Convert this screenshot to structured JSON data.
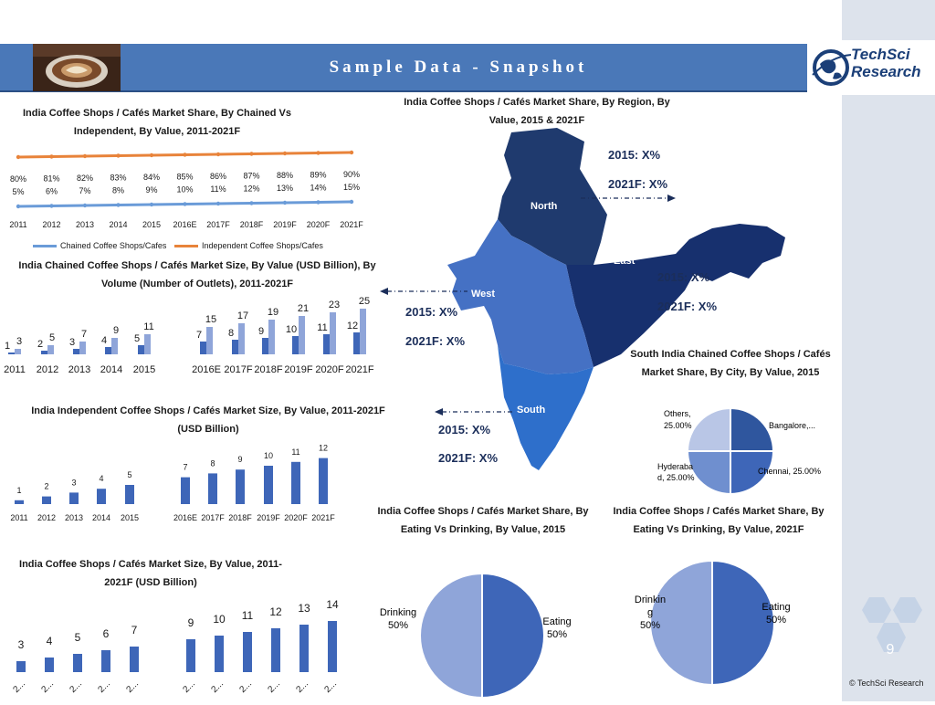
{
  "banner": {
    "title": "Sample Data - Snapshot"
  },
  "logo": {
    "line1": "TechSci",
    "line2": "Research"
  },
  "footer": "© TechSci Research",
  "page_number": "9",
  "colors": {
    "banner": "#4a78b8",
    "orange": "#e8833a",
    "lightblue": "#6a9bd8",
    "bar": "#3e66b8",
    "barlight": "#8fa5d9",
    "north": "#1f3a6e",
    "east": "#17306e",
    "west": "#4571c4",
    "south": "#2e6fcb"
  },
  "icons": [
    "coffee-cup-photo",
    "globe-logo-icon",
    "hexagon-icon",
    "dashed-arrow-icon"
  ],
  "chart_data": [
    {
      "type": "line",
      "title": "India Coffee Shops / Cafés Market Share, By Chained Vs Independent, By Value, 2011-2021F",
      "categories": [
        "2011",
        "2012",
        "2013",
        "2014",
        "2015",
        "2016E",
        "2017F",
        "2018F",
        "2019F",
        "2020F",
        "2021F"
      ],
      "series": [
        {
          "name": "Chained Coffee Shops/Cafes",
          "labels": [
            "5%",
            "6%",
            "7%",
            "8%",
            "9%",
            "10%",
            "11%",
            "12%",
            "13%",
            "14%",
            "15%"
          ],
          "values": [
            5,
            6,
            7,
            8,
            9,
            10,
            11,
            12,
            13,
            14,
            15
          ]
        },
        {
          "name": "Independent Coffee Shops/Cafes",
          "labels": [
            "80%",
            "81%",
            "82%",
            "83%",
            "84%",
            "85%",
            "86%",
            "87%",
            "88%",
            "89%",
            "90%"
          ],
          "values": [
            80,
            81,
            82,
            83,
            84,
            85,
            86,
            87,
            88,
            89,
            90
          ]
        }
      ]
    },
    {
      "type": "bar",
      "title": "India Chained Coffee Shops / Cafés Market Size, By Value (USD Billion), By Volume (Number of Outlets), 2011-2021F",
      "categories": [
        "2011",
        "2012",
        "2013",
        "2014",
        "2015",
        "2016E",
        "2017F",
        "2018F",
        "2019F",
        "2020F",
        "2021F"
      ],
      "series": [
        {
          "values": [
            1,
            2,
            3,
            4,
            5,
            7,
            8,
            9,
            10,
            11,
            12
          ]
        },
        {
          "values": [
            3,
            5,
            7,
            9,
            11,
            15,
            17,
            19,
            21,
            23,
            25
          ]
        }
      ]
    },
    {
      "type": "bar",
      "title": "India Independent Coffee Shops / Cafés Market Size, By Value, 2011-2021F (USD Billion)",
      "categories": [
        "2011",
        "2012",
        "2013",
        "2014",
        "2015",
        "2016E",
        "2017F",
        "2018F",
        "2019F",
        "2020F",
        "2021F"
      ],
      "values": [
        1,
        2,
        3,
        4,
        5,
        7,
        8,
        9,
        10,
        11,
        12
      ]
    },
    {
      "type": "bar",
      "title": "India Coffee Shops / Cafés Market Size, By Value, 2011-2021F (USD Billion)",
      "categories": [
        "2...",
        "2...",
        "2...",
        "2...",
        "2...",
        "2...",
        "2...",
        "2...",
        "2...",
        "2...",
        "2..."
      ],
      "values": [
        3,
        4,
        5,
        6,
        7,
        9,
        10,
        11,
        12,
        13,
        14
      ]
    },
    {
      "type": "pie",
      "title": "India Coffee Shops / Cafés Market Share, By Eating Vs Drinking, By Value, 2015",
      "slices": [
        {
          "label": "Eating",
          "value": 50,
          "text": "50%"
        },
        {
          "label": "Drinking",
          "value": 50,
          "text": "50%"
        }
      ]
    },
    {
      "type": "pie",
      "title": "India Coffee Shops / Cafés Market Share, By Eating Vs Drinking, By Value, 2021F",
      "slices": [
        {
          "label": "Eating",
          "value": 50,
          "text": "50%"
        },
        {
          "label": "Drinking",
          "value": 50,
          "text": "50%"
        }
      ],
      "drink_lines": [
        "Drinkin",
        "g",
        "50%"
      ]
    },
    {
      "type": "pie",
      "title": "South India Chained Coffee Shops / Cafés Market Share, By City, By Value, 2015",
      "slices": [
        {
          "label": "Bangalore,...",
          "value": 25
        },
        {
          "label": "Chennai, 25.00%",
          "value": 25
        },
        {
          "label": "Hyderabad, 25.00%",
          "value": 25,
          "lines": [
            "Hyderaba",
            "d, 25.00%"
          ]
        },
        {
          "label": "Others, 25.00%",
          "value": 25,
          "lines": [
            "Others,",
            "25.00%"
          ]
        }
      ]
    }
  ],
  "map": {
    "title": "India Coffee Shops / Cafés Market Share, By Region, By Value, 2015 & 2021F",
    "regions": [
      {
        "name": "North",
        "y2015": "2015: X%",
        "y2021": "2021F: X%"
      },
      {
        "name": "East",
        "y2015": "2015: X%",
        "y2021": "2021F: X%"
      },
      {
        "name": "West",
        "y2015": "2015: X%",
        "y2021": "2021F: X%"
      },
      {
        "name": "South",
        "y2015": "2015: X%",
        "y2021": "2021F: X%"
      }
    ]
  }
}
